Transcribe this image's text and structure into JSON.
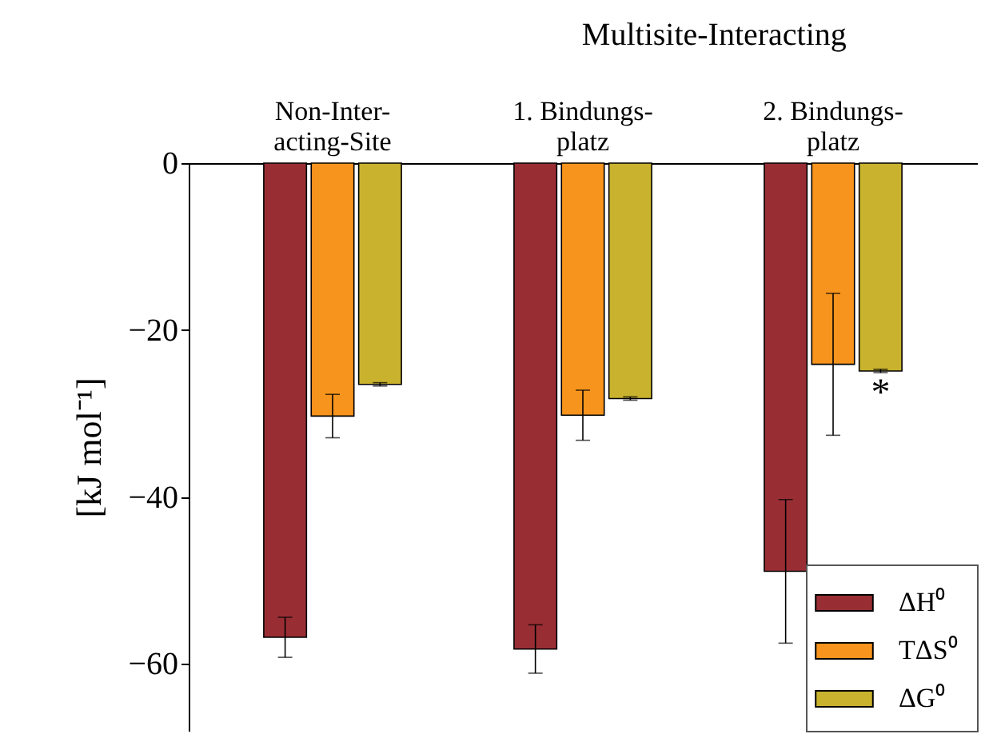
{
  "chart_data": {
    "type": "bar",
    "categories": [
      "Non-Inter-\nacting-Site",
      "1. Bindungs-\nplatz",
      "2. Bindungs-\nplatz"
    ],
    "ylabel": "[kJ mol⁻¹]",
    "series": [
      {
        "name": "ΔH⁰",
        "color": "#982e34",
        "values": [
          -56.8,
          -58.2,
          -48.9
        ],
        "errors": [
          2.4,
          2.9,
          8.6
        ]
      },
      {
        "name": "TΔS⁰",
        "color": "#f7941d",
        "values": [
          -30.3,
          -30.2,
          -24.1
        ],
        "errors": [
          2.6,
          3.0,
          8.5
        ]
      },
      {
        "name": "ΔG⁰",
        "color": "#c9b22e",
        "values": [
          -26.5,
          -28.2,
          -24.9
        ],
        "errors": [
          0.2,
          0.2,
          0.2
        ]
      }
    ],
    "ylim": [
      -68,
      0
    ],
    "yticks": [
      -60,
      -40,
      -20,
      0
    ],
    "annotations": [
      "Multisite-Interacting",
      {
        "text": "*",
        "x": "2. Bindungs-\nplatz",
        "y": -27.6
      }
    ],
    "legend": "bottom right",
    "grid": false
  }
}
